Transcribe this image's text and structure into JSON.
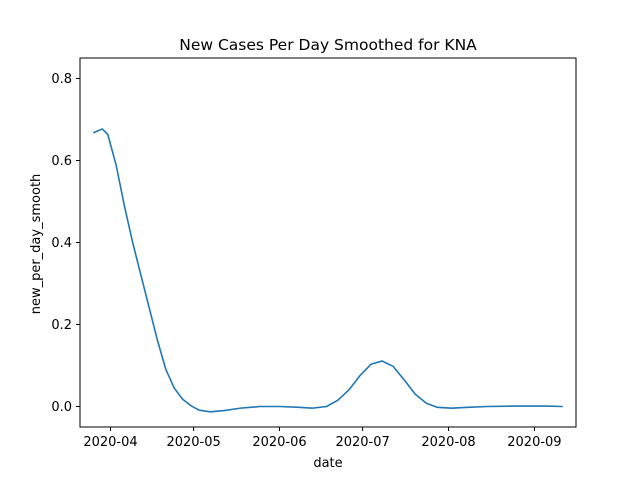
{
  "chart_data": {
    "type": "line",
    "title": "New Cases Per Day Smoothed for KNA",
    "xlabel": "date",
    "ylabel": "new_per_day_smooth",
    "xlim": [
      "2020-03-21",
      "2020-09-16"
    ],
    "ylim": [
      -0.05,
      0.85
    ],
    "x_ticks": [
      {
        "date": "2020-04-01",
        "label": "2020-04"
      },
      {
        "date": "2020-05-01",
        "label": "2020-05"
      },
      {
        "date": "2020-06-01",
        "label": "2020-06"
      },
      {
        "date": "2020-07-01",
        "label": "2020-07"
      },
      {
        "date": "2020-08-01",
        "label": "2020-08"
      },
      {
        "date": "2020-09-01",
        "label": "2020-09"
      }
    ],
    "y_ticks": [
      {
        "value": 0.0,
        "label": "0.0"
      },
      {
        "value": 0.2,
        "label": "0.2"
      },
      {
        "value": 0.4,
        "label": "0.4"
      },
      {
        "value": 0.6,
        "label": "0.6"
      },
      {
        "value": 0.8,
        "label": "0.8"
      }
    ],
    "grid": false,
    "series": [
      {
        "color": "#1f77b4",
        "points": [
          {
            "x": "2020-03-26",
            "y": 0.668
          },
          {
            "x": "2020-03-29",
            "y": 0.677
          },
          {
            "x": "2020-03-31",
            "y": 0.664
          },
          {
            "x": "2020-04-03",
            "y": 0.59
          },
          {
            "x": "2020-04-06",
            "y": 0.49
          },
          {
            "x": "2020-04-09",
            "y": 0.4
          },
          {
            "x": "2020-04-12",
            "y": 0.32
          },
          {
            "x": "2020-04-15",
            "y": 0.24
          },
          {
            "x": "2020-04-18",
            "y": 0.16
          },
          {
            "x": "2020-04-21",
            "y": 0.09
          },
          {
            "x": "2020-04-24",
            "y": 0.045
          },
          {
            "x": "2020-04-27",
            "y": 0.018
          },
          {
            "x": "2020-04-30",
            "y": 0.002
          },
          {
            "x": "2020-05-03",
            "y": -0.009
          },
          {
            "x": "2020-05-07",
            "y": -0.013
          },
          {
            "x": "2020-05-12",
            "y": -0.01
          },
          {
            "x": "2020-05-18",
            "y": -0.004
          },
          {
            "x": "2020-05-25",
            "y": 0.0
          },
          {
            "x": "2020-06-01",
            "y": 0.0
          },
          {
            "x": "2020-06-08",
            "y": -0.002
          },
          {
            "x": "2020-06-13",
            "y": -0.004
          },
          {
            "x": "2020-06-18",
            "y": 0.0
          },
          {
            "x": "2020-06-22",
            "y": 0.015
          },
          {
            "x": "2020-06-26",
            "y": 0.04
          },
          {
            "x": "2020-06-30",
            "y": 0.075
          },
          {
            "x": "2020-07-04",
            "y": 0.103
          },
          {
            "x": "2020-07-08",
            "y": 0.111
          },
          {
            "x": "2020-07-12",
            "y": 0.098
          },
          {
            "x": "2020-07-16",
            "y": 0.065
          },
          {
            "x": "2020-07-20",
            "y": 0.03
          },
          {
            "x": "2020-07-24",
            "y": 0.008
          },
          {
            "x": "2020-07-28",
            "y": -0.002
          },
          {
            "x": "2020-08-02",
            "y": -0.004
          },
          {
            "x": "2020-08-08",
            "y": -0.002
          },
          {
            "x": "2020-08-15",
            "y": 0.0
          },
          {
            "x": "2020-08-25",
            "y": 0.001
          },
          {
            "x": "2020-09-05",
            "y": 0.001
          },
          {
            "x": "2020-09-11",
            "y": 0.0
          }
        ]
      }
    ]
  }
}
